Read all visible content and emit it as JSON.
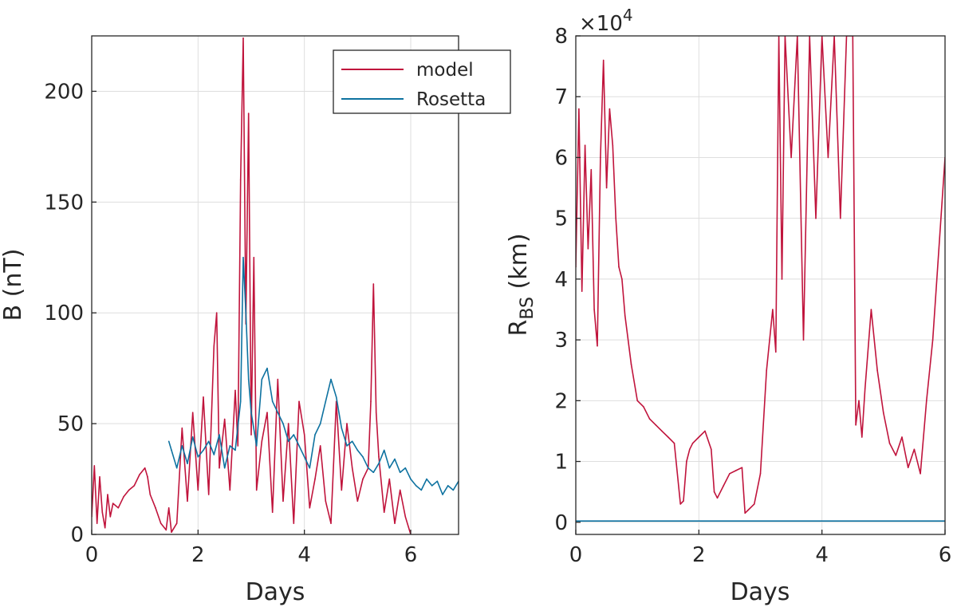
{
  "chart_data": [
    {
      "type": "line",
      "xlabel": "Days",
      "ylabel": "B (nT)",
      "xlim": [
        0,
        6.9
      ],
      "ylim": [
        0,
        225
      ],
      "xticks": [
        0,
        2,
        4,
        6
      ],
      "xtick_labels": [
        "0",
        "2",
        "4",
        "6"
      ],
      "yticks": [
        0,
        50,
        100,
        150,
        200
      ],
      "ytick_labels": [
        "0",
        "50",
        "100",
        "150",
        "200"
      ],
      "grid": true,
      "legend": {
        "position": "top-right",
        "entries": [
          "model",
          "Rosetta"
        ]
      },
      "series": [
        {
          "name": "model",
          "color": "#c0143c",
          "x": [
            0,
            0.05,
            0.1,
            0.15,
            0.2,
            0.25,
            0.3,
            0.35,
            0.4,
            0.5,
            0.6,
            0.7,
            0.8,
            0.9,
            1.0,
            1.05,
            1.1,
            1.2,
            1.3,
            1.4,
            1.45,
            1.5,
            1.6,
            1.7,
            1.8,
            1.9,
            2.0,
            2.1,
            2.2,
            2.3,
            2.35,
            2.4,
            2.5,
            2.6,
            2.7,
            2.75,
            2.8,
            2.85,
            2.9,
            2.95,
            3.0,
            3.05,
            3.1,
            3.2,
            3.3,
            3.4,
            3.5,
            3.6,
            3.7,
            3.8,
            3.9,
            4.0,
            4.1,
            4.2,
            4.3,
            4.4,
            4.5,
            4.6,
            4.7,
            4.8,
            4.9,
            5.0,
            5.1,
            5.2,
            5.25,
            5.3,
            5.35,
            5.4,
            5.5,
            5.6,
            5.7,
            5.8,
            5.9,
            6.0
          ],
          "y": [
            8,
            31,
            5,
            26,
            10,
            3,
            18,
            8,
            14,
            12,
            17,
            20,
            22,
            27,
            30,
            26,
            18,
            12,
            5,
            2,
            12,
            1,
            5,
            48,
            15,
            55,
            20,
            62,
            18,
            85,
            100,
            30,
            52,
            20,
            65,
            40,
            160,
            224,
            95,
            190,
            45,
            125,
            20,
            42,
            55,
            10,
            70,
            15,
            50,
            5,
            60,
            45,
            12,
            25,
            40,
            15,
            5,
            60,
            20,
            50,
            30,
            15,
            25,
            30,
            60,
            113,
            55,
            35,
            10,
            25,
            5,
            20,
            8,
            0
          ]
        },
        {
          "name": "Rosetta",
          "color": "#0e72a0",
          "x": [
            1.45,
            1.5,
            1.6,
            1.7,
            1.8,
            1.9,
            2.0,
            2.1,
            2.2,
            2.3,
            2.4,
            2.5,
            2.6,
            2.7,
            2.8,
            2.85,
            2.9,
            2.95,
            3.0,
            3.1,
            3.2,
            3.3,
            3.4,
            3.5,
            3.6,
            3.7,
            3.8,
            3.9,
            4.0,
            4.1,
            4.2,
            4.3,
            4.4,
            4.5,
            4.6,
            4.7,
            4.8,
            4.9,
            5.0,
            5.1,
            5.2,
            5.3,
            5.4,
            5.5,
            5.6,
            5.7,
            5.8,
            5.9,
            6.0,
            6.1,
            6.2,
            6.3,
            6.4,
            6.5,
            6.6,
            6.7,
            6.8,
            6.9
          ],
          "y": [
            42,
            38,
            30,
            40,
            32,
            44,
            35,
            38,
            42,
            36,
            45,
            30,
            40,
            38,
            60,
            125,
            100,
            70,
            55,
            40,
            70,
            75,
            60,
            55,
            50,
            42,
            45,
            40,
            35,
            30,
            45,
            50,
            60,
            70,
            62,
            48,
            40,
            42,
            38,
            35,
            30,
            28,
            32,
            38,
            30,
            34,
            28,
            30,
            25,
            22,
            20,
            25,
            22,
            24,
            18,
            22,
            20,
            24
          ]
        }
      ]
    },
    {
      "type": "line",
      "xlabel": "Days",
      "ylabel_main": "R",
      "ylabel_sub": "BS",
      "ylabel_unit": " (km)",
      "exponent_prefix": "×10",
      "exponent_power": "4",
      "xlim": [
        0,
        6
      ],
      "ylim": [
        -0.2,
        8
      ],
      "xticks": [
        0,
        2,
        4,
        6
      ],
      "xtick_labels": [
        "0",
        "2",
        "4",
        "6"
      ],
      "yticks": [
        0,
        1,
        2,
        3,
        4,
        5,
        6,
        7,
        8
      ],
      "ytick_labels": [
        "0",
        "1",
        "2",
        "3",
        "4",
        "5",
        "6",
        "7",
        "8"
      ],
      "grid": true,
      "series": [
        {
          "name": "model",
          "color": "#c0143c",
          "x": [
            0,
            0.05,
            0.1,
            0.15,
            0.2,
            0.25,
            0.3,
            0.35,
            0.4,
            0.45,
            0.5,
            0.55,
            0.6,
            0.65,
            0.7,
            0.75,
            0.8,
            0.9,
            1.0,
            1.1,
            1.2,
            1.3,
            1.4,
            1.5,
            1.6,
            1.7,
            1.75,
            1.8,
            1.85,
            1.9,
            2.0,
            2.1,
            2.2,
            2.25,
            2.3,
            2.4,
            2.5,
            2.6,
            2.7,
            2.75,
            2.8,
            2.9,
            3.0,
            3.1,
            3.2,
            3.25,
            3.3,
            3.35,
            3.4,
            3.5,
            3.6,
            3.7,
            3.8,
            3.9,
            4.0,
            4.1,
            4.2,
            4.3,
            4.4,
            4.5,
            4.55,
            4.6,
            4.65,
            4.7,
            4.8,
            4.9,
            5.0,
            5.1,
            5.2,
            5.3,
            5.4,
            5.5,
            5.6,
            5.7,
            5.8,
            5.9,
            6.0
          ],
          "y": [
            4.2,
            6.8,
            3.8,
            6.2,
            4.5,
            5.8,
            3.5,
            2.9,
            6.0,
            7.6,
            5.5,
            6.8,
            6.2,
            5.0,
            4.2,
            4.0,
            3.4,
            2.6,
            2.0,
            1.9,
            1.7,
            1.6,
            1.5,
            1.4,
            1.3,
            0.3,
            0.35,
            1.0,
            1.2,
            1.3,
            1.4,
            1.5,
            1.2,
            0.5,
            0.4,
            0.6,
            0.8,
            0.85,
            0.9,
            0.15,
            0.2,
            0.3,
            0.8,
            2.5,
            3.5,
            2.8,
            8.0,
            4.0,
            8.0,
            6.0,
            8.0,
            3.0,
            8.0,
            5.0,
            8.0,
            6.0,
            8.0,
            5.0,
            8.0,
            8.0,
            1.6,
            2.0,
            1.4,
            2.2,
            3.5,
            2.5,
            1.8,
            1.3,
            1.1,
            1.4,
            0.9,
            1.2,
            0.8,
            2.0,
            3.0,
            4.5,
            6.0
          ]
        },
        {
          "name": "Rosetta",
          "color": "#0e72a0",
          "x": [
            0,
            6
          ],
          "y": [
            0.02,
            0.02
          ]
        }
      ]
    }
  ]
}
